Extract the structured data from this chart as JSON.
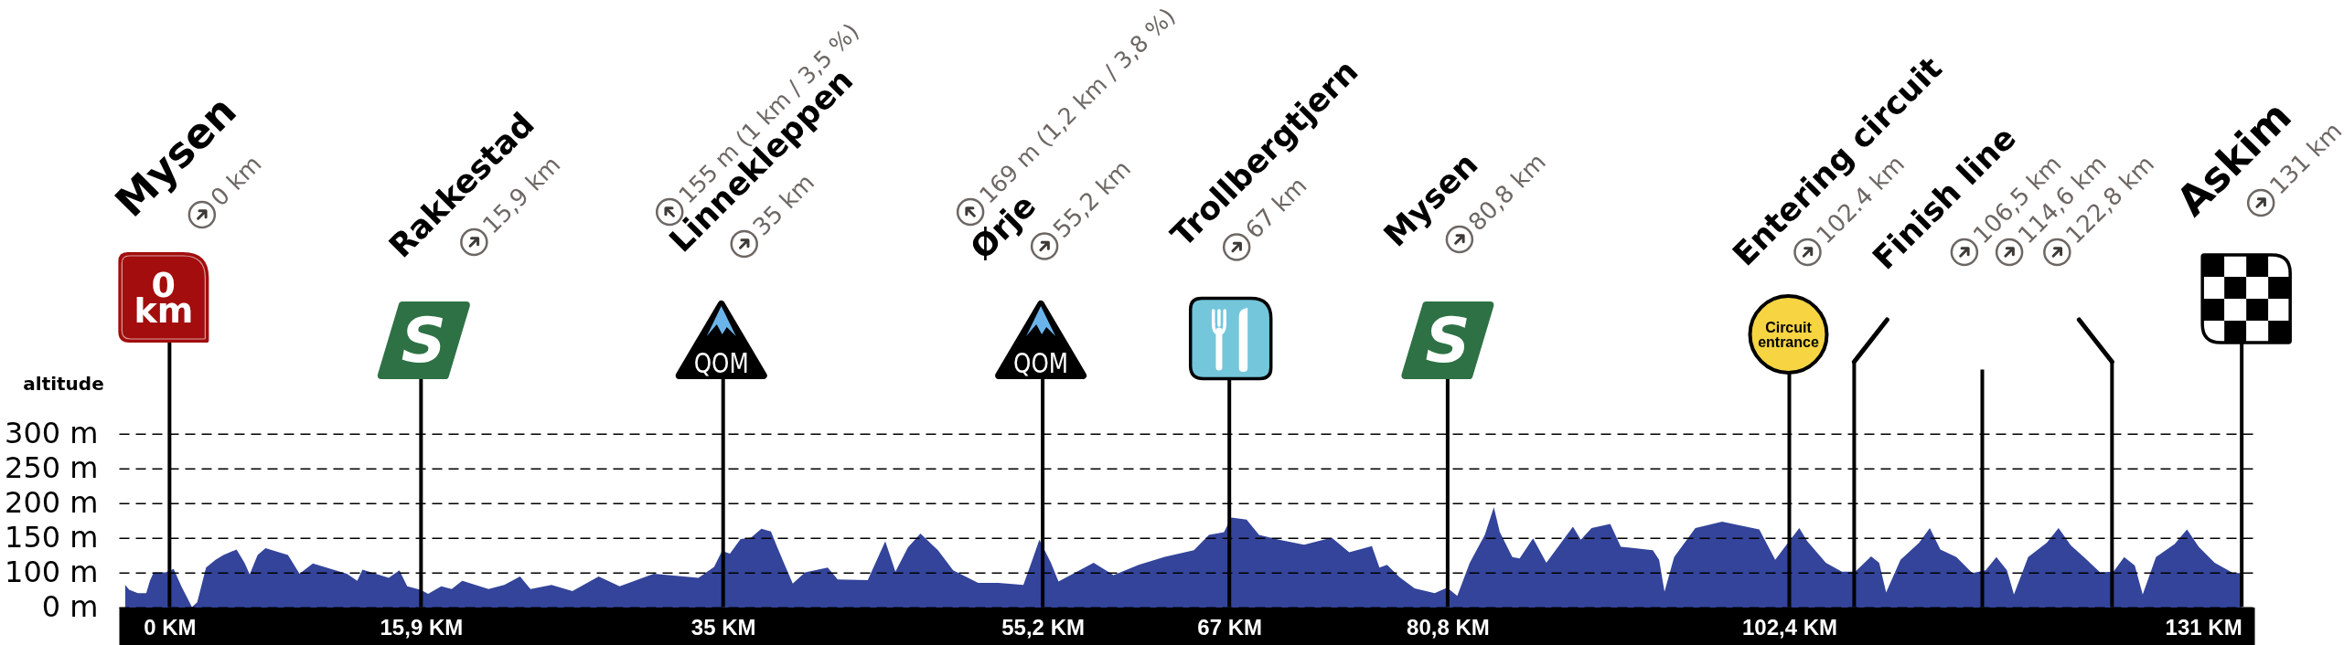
{
  "chart_data": {
    "type": "area",
    "ylabel": "altitude",
    "color": "#33449a",
    "x": [
      -2.8,
      -2.55,
      -2.0,
      -1.47,
      -1.24,
      -1.0,
      -0.24,
      0.26,
      0.75,
      1.42,
      1.75,
      2.31,
      2.91,
      3.41,
      4.24,
      4.74,
      5.07,
      5.57,
      6.07,
      7.49,
      8.22,
      9.06,
      11.21,
      11.87,
      12.2,
      13.86,
      14.53,
      15.03,
      15.86,
      16.35,
      17.18,
      17.84,
      18.5,
      20.17,
      21.16,
      22.16,
      22.82,
      24.15,
      25.47,
      27.13,
      28.46,
      30.62,
      33.44,
      34.43,
      34.93,
      35.43,
      36.1,
      36.76,
      37.42,
      38.02,
      38.41,
      38.91,
      39.4,
      40.18,
      41.61,
      42.24,
      44.14,
      45.25,
      45.89,
      46.68,
      47.47,
      48.58,
      49.54,
      51.12,
      52.39,
      53.98,
      54.61,
      54.99,
      55.72,
      56.2,
      58.42,
      59.68,
      61.27,
      62.86,
      64.76,
      65.71,
      66.66,
      67.13,
      68.09,
      68.88,
      70.14,
      71.73,
      73.47,
      74.58,
      76.01,
      76.49,
      76.97,
      77.76,
      78.71,
      79.98,
      80.77,
      81.41,
      82.2,
      83.15,
      83.72,
      84.1,
      84.89,
      85.35,
      86.2,
      87.04,
      88.72,
      89.22,
      89.9,
      91.08,
      91.75,
      93.77,
      94.17,
      94.51,
      95.12,
      96.46,
      98.15,
      100.5,
      101.51,
      102.19,
      103.03,
      103.54,
      104.71,
      105.72,
      106.57,
      107.57,
      108.08,
      108.52,
      109.43,
      110.61,
      111.28,
      111.95,
      112.96,
      113.97,
      114.81,
      115.49,
      116.16,
      116.6,
      117.5,
      118.68,
      119.42,
      120.2,
      121.21,
      122.05,
      122.89,
      123.57,
      124.24,
      124.74,
      125.58,
      126.76,
      127.54,
      128.28,
      129.29,
      130.46,
      131
    ],
    "values": [
      82,
      75,
      70,
      70,
      88,
      100,
      100,
      105,
      80,
      50,
      57,
      107,
      118,
      125,
      133,
      114,
      97,
      125,
      135,
      125,
      98,
      113,
      98,
      88,
      104,
      92,
      103,
      80,
      75,
      69,
      80,
      76,
      88,
      76,
      82,
      94,
      76,
      82,
      73,
      94,
      80,
      98,
      92,
      108,
      131,
      127,
      148,
      150,
      163,
      159,
      137,
      110,
      84,
      100,
      107,
      90,
      89,
      145,
      101,
      136,
      156,
      132,
      103,
      85,
      85,
      82,
      122,
      147,
      114,
      87,
      114,
      96,
      111,
      122,
      132,
      154,
      158,
      179,
      176,
      154,
      147,
      140,
      150,
      129,
      138,
      107,
      111,
      93,
      77,
      70,
      78,
      66,
      114,
      154,
      194,
      158,
      122,
      120,
      149,
      114,
      166,
      147,
      164,
      170,
      137,
      132,
      118,
      72,
      122,
      164,
      173,
      162,
      118,
      139,
      164,
      145,
      114,
      101,
      101,
      123,
      114,
      71,
      118,
      143,
      164,
      133,
      122,
      99,
      103,
      122,
      103,
      68,
      122,
      143,
      164,
      139,
      118,
      100,
      101,
      122,
      110,
      68,
      122,
      141,
      162,
      137,
      114,
      99,
      99
    ],
    "xlim": [
      -3.2,
      131.8
    ],
    "xticks": [
      {
        "value": 0,
        "label": "0 KM"
      },
      {
        "value": 15.9,
        "label": "15,9 KM"
      },
      {
        "value": 35,
        "label": "35 KM"
      },
      {
        "value": 55.2,
        "label": "55,2 KM"
      },
      {
        "value": 67,
        "label": "67 KM"
      },
      {
        "value": 80.8,
        "label": "80,8 KM"
      },
      {
        "value": 102.4,
        "label": "102,4 KM"
      },
      {
        "value": 131,
        "label": "131 KM"
      }
    ],
    "ylim": [
      50,
      300
    ],
    "yticks": [
      {
        "value": 50,
        "label": "0 m"
      },
      {
        "value": 100,
        "label": "100 m"
      },
      {
        "value": 150,
        "label": "150 m"
      },
      {
        "value": 200,
        "label": "200 m"
      },
      {
        "value": 250,
        "label": "250 m"
      },
      {
        "value": 300,
        "label": "300 m"
      }
    ],
    "grid": "y",
    "ref_lines": [
      {
        "axis": "x",
        "value": 0,
        "color": "#000000"
      },
      {
        "axis": "x",
        "value": 15.9,
        "color": "#000000"
      },
      {
        "axis": "x",
        "value": 35,
        "color": "#000000"
      },
      {
        "axis": "x",
        "value": 55.2,
        "color": "#000000"
      },
      {
        "axis": "x",
        "value": 67,
        "color": "#000000"
      },
      {
        "axis": "x",
        "value": 80.8,
        "color": "#000000"
      },
      {
        "axis": "x",
        "value": 102.4,
        "color": "#000000"
      },
      {
        "axis": "x",
        "value": 106.5,
        "color": "#000000"
      },
      {
        "axis": "x",
        "value": 114.6,
        "color": "#000000"
      },
      {
        "axis": "x",
        "value": 122.8,
        "color": "#000000"
      },
      {
        "axis": "x",
        "value": 131,
        "color": "#000000"
      }
    ],
    "annotations": [
      "Mysen",
      "0 km",
      "0 km",
      "Rakkestad",
      "S",
      "15,9 km",
      "Linnekleppen",
      "QOM",
      "155 m (1 km / 3,5 %)",
      "35 km",
      "Ørje",
      "QOM",
      "169 m (1,2 km / 3,8 %)",
      "55,2 km",
      "Trollbergtjern",
      "67 km",
      "Mysen",
      "S",
      "80,8 km",
      "Entering circuit",
      "Circuit entrance",
      "102.4 km",
      "Finish line",
      "106,5 km",
      "114,6 km",
      "122,8 km",
      "Askim",
      "131 km"
    ]
  }
}
